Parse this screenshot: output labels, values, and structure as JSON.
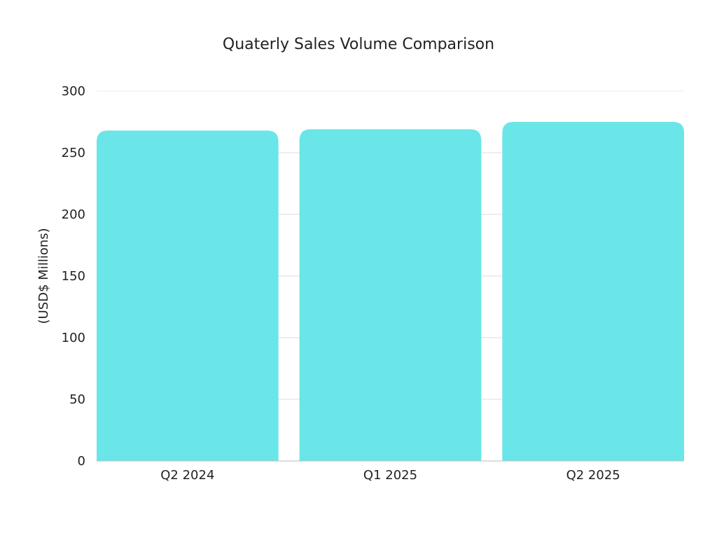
{
  "chart_data": {
    "type": "bar",
    "title": "Quaterly Sales Volume Comparison",
    "xlabel": "",
    "ylabel": "(USD$ Millions)",
    "categories": [
      "Q2 2024",
      "Q1 2025",
      "Q2 2025"
    ],
    "values": [
      268,
      269,
      275
    ],
    "ylim": [
      0,
      300
    ],
    "yticks": [
      0,
      50,
      100,
      150,
      200,
      250,
      300
    ],
    "grid": true,
    "legend": "none",
    "bar_color": "#6ae5e8"
  }
}
